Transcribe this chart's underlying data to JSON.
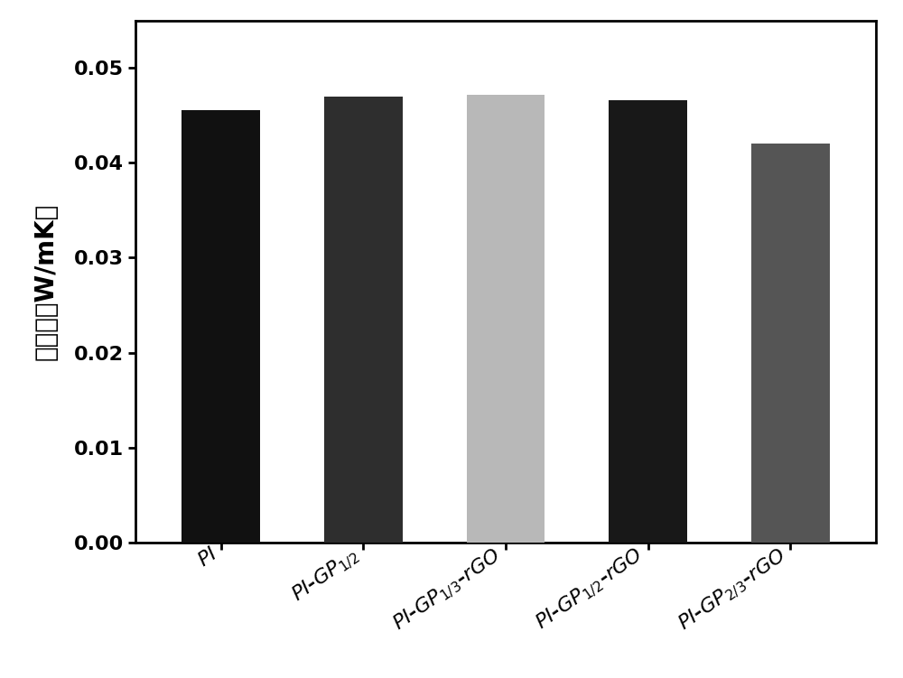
{
  "values": [
    0.0455,
    0.047,
    0.0472,
    0.0466,
    0.042
  ],
  "bar_colors": [
    "#111111",
    "#2e2e2e",
    "#b8b8b8",
    "#181818",
    "#555555"
  ],
  "ylabel": "热导率（W/mK）",
  "ylim": [
    0.0,
    0.055
  ],
  "yticks": [
    0.0,
    0.01,
    0.02,
    0.03,
    0.04,
    0.05
  ],
  "background_color": "#ffffff",
  "bar_width": 0.55,
  "ylabel_fontsize": 20,
  "tick_fontsize": 16,
  "xlabel_fontsize": 16
}
